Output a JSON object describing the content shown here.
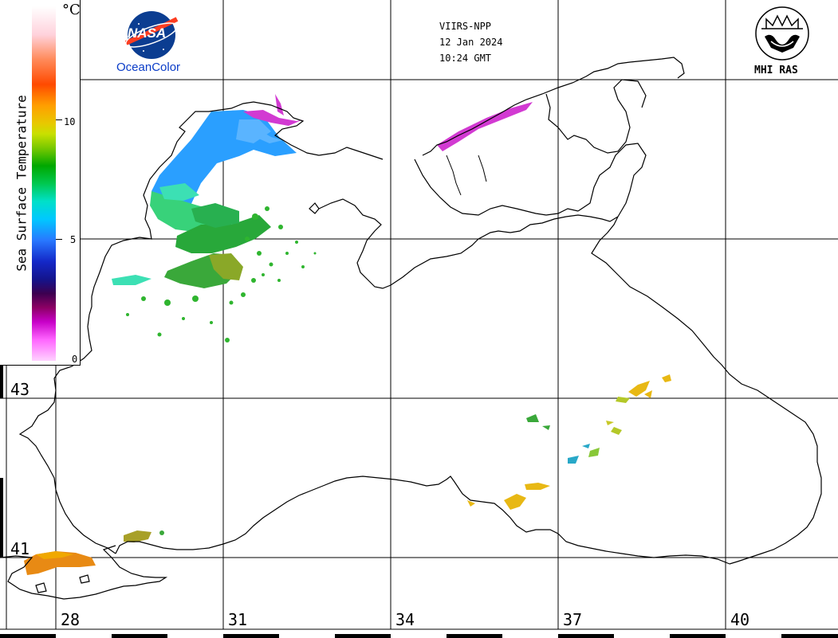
{
  "meta": {
    "sensor": "VIIRS-NPP",
    "date": "12 Jan 2024",
    "time": "10:24 GMT"
  },
  "legend": {
    "title": "Sea Surface Temperature",
    "unit": "°C",
    "ticks": [
      "0",
      "5",
      "10"
    ],
    "range": [
      0,
      15
    ]
  },
  "logos": {
    "nasa_text": "NASA",
    "nasa_wordmark": "OceanColor",
    "mhi_label": "MHI RAS"
  },
  "grid": {
    "longitudes": [
      "28",
      "31",
      "34",
      "37",
      "40"
    ],
    "latitudes": [
      "43",
      "41"
    ]
  },
  "colors": {
    "coast": "#000000",
    "warm_patch": "#e8a800",
    "cold_patch": "#2a9fff",
    "green_patch": "#2fb52f",
    "magenta_patch": "#d23ad2"
  }
}
